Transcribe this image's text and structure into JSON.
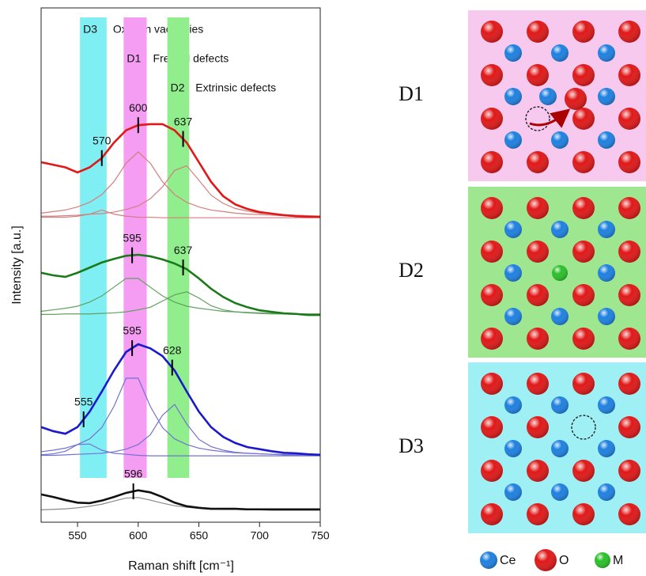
{
  "chart_data": {
    "type": "line",
    "x_label": "Raman shift [cm⁻¹]",
    "y_label": "Intensity [a.u.]",
    "xlim": [
      520,
      750
    ],
    "xticks": [
      550,
      600,
      650,
      700,
      750
    ],
    "ylim": [
      0,
      100
    ],
    "x": [
      520,
      530,
      540,
      550,
      560,
      570,
      580,
      590,
      600,
      610,
      620,
      630,
      640,
      650,
      660,
      670,
      680,
      690,
      700,
      710,
      720,
      730,
      740,
      750
    ],
    "bands": [
      {
        "label": "D3",
        "text": "Oxygen vacancies",
        "range": [
          552,
          574
        ],
        "color": "#80eff4"
      },
      {
        "label": "D1",
        "text": "Frenkel defects",
        "range": [
          588,
          607
        ],
        "color": "#f59cf3"
      },
      {
        "label": "D2",
        "text": "Extrinsic defects",
        "range": [
          624,
          642
        ],
        "color": "#90ef8c"
      }
    ],
    "series": [
      {
        "color": "#e01818",
        "component_color": "#d47e7e",
        "values": [
          70,
          69.5,
          69,
          68,
          69,
          70.8,
          73.8,
          76.2,
          77.2,
          77.4,
          77.4,
          76.2,
          73.8,
          70,
          66.2,
          63.4,
          61.8,
          60.9,
          60.3,
          60,
          59.7,
          59.5,
          59.4,
          59.4
        ],
        "components": [
          {
            "values": [
              59.3,
              59.3,
              59.3,
              59.5,
              59.9,
              60.7,
              59.9,
              59.5,
              59.3,
              59.3,
              59.2,
              59.2,
              59.2,
              59.2,
              59.2,
              59.2,
              59.2,
              59.2,
              59.2,
              59.2,
              59.2,
              59.2,
              59.2,
              59.2
            ]
          },
          {
            "values": [
              60.1,
              60.4,
              60.7,
              61.3,
              62.2,
              63.7,
              66.2,
              69.8,
              72,
              69.8,
              66.2,
              63.7,
              62.2,
              61.3,
              60.7,
              60.4,
              60.1,
              59.9,
              59.8,
              59.7,
              59.6,
              59.6,
              59.5,
              59.5
            ]
          },
          {
            "values": [
              59.5,
              59.5,
              59.6,
              59.7,
              59.9,
              60,
              60.3,
              60.8,
              61.5,
              62.9,
              65.2,
              68.4,
              69.3,
              66.5,
              63.6,
              62,
              61,
              60.5,
              60.1,
              59.9,
              59.8,
              59.7,
              59.6,
              59.5
            ]
          }
        ],
        "peaks": [
          570,
          600,
          637
        ]
      },
      {
        "color": "#1a7a1a",
        "component_color": "#62a062",
        "values": [
          48.5,
          48,
          47.7,
          48.5,
          49.5,
          50.5,
          51.2,
          51.8,
          52,
          51.7,
          51.1,
          50.3,
          49.2,
          47.4,
          45.4,
          43.8,
          42.6,
          41.8,
          41.2,
          40.9,
          40.6,
          40.5,
          40.3,
          40.3
        ],
        "components": [
          {
            "values": [
              41,
              41.3,
              41.6,
              42,
              42.8,
              44,
              45.7,
              47.4,
              47.4,
              45.7,
              44,
              42.8,
              42,
              41.6,
              41.3,
              41,
              40.9,
              40.8,
              40.7,
              40.6,
              40.6,
              40.5,
              40.5,
              40.5
            ]
          },
          {
            "values": [
              40.4,
              40.4,
              40.5,
              40.5,
              40.5,
              40.6,
              40.7,
              40.9,
              41.3,
              41.8,
              43,
              44.2,
              44.8,
              43.6,
              42.1,
              41.3,
              40.9,
              40.7,
              40.6,
              40.5,
              40.5,
              40.4,
              40.4,
              40.4
            ]
          }
        ],
        "peaks": [
          595,
          637
        ]
      },
      {
        "color": "#1a1acc",
        "component_color": "#7272d2",
        "values": [
          18.5,
          17.7,
          17.2,
          18.5,
          21.5,
          25.4,
          29.5,
          33.1,
          34.6,
          33.8,
          32.3,
          29.5,
          25.4,
          21.5,
          18.5,
          16.6,
          15.4,
          14.6,
          14.2,
          13.8,
          13.5,
          13.4,
          13.2,
          13.1
        ],
        "components": [
          {
            "values": [
              13.1,
              13.3,
              13.8,
              15.1,
              15.2,
              14,
              13.4,
              13.2,
              13,
              12.9,
              12.9,
              12.9,
              12.9,
              12.9,
              12.9,
              12.9,
              12.9,
              12.9,
              12.9,
              12.9,
              12.9,
              12.9,
              12.9,
              12.9
            ]
          },
          {
            "values": [
              13.7,
              14,
              14.4,
              15.1,
              16.2,
              18.4,
              22.5,
              28,
              28,
              22.5,
              18.4,
              16.2,
              15.1,
              14.4,
              14,
              13.7,
              13.5,
              13.4,
              13.3,
              13.2,
              13.2,
              13.1,
              13.1,
              13.1
            ]
          },
          {
            "values": [
              13,
              13,
              13.1,
              13.2,
              13.3,
              13.4,
              13.7,
              14.2,
              15.1,
              17,
              20.8,
              22.9,
              19.1,
              16.1,
              14.7,
              14,
              13.6,
              13.4,
              13.3,
              13.2,
              13.1,
              13.1,
              13,
              13
            ]
          }
        ],
        "peaks": [
          555,
          595,
          628
        ]
      },
      {
        "color": "#111111",
        "component_color": "#8a8a8a",
        "values": [
          5.4,
          4.9,
          4.3,
          3.8,
          3.7,
          4.2,
          4.9,
          5.7,
          6.2,
          5.8,
          4.9,
          3.8,
          3.1,
          2.8,
          2.6,
          2.6,
          2.6,
          2.5,
          2.5,
          2.5,
          2.5,
          2.5,
          2.5,
          2.5
        ],
        "components": [
          {
            "values": [
              2.4,
              2.5,
              2.6,
              2.8,
              3.1,
              3.5,
              4.1,
              4.7,
              4.8,
              4.3,
              3.7,
              3.2,
              2.9,
              2.7,
              2.6,
              2.5,
              2.5,
              2.4,
              2.4,
              2.3,
              2.3,
              2.3,
              2.3,
              2.3
            ]
          }
        ],
        "peaks": [
          596
        ]
      }
    ]
  },
  "lattice": {
    "panels": [
      {
        "label": "D1",
        "color": "#f8c9ef"
      },
      {
        "label": "D2",
        "color": "#9fe690"
      },
      {
        "label": "D3",
        "color": "#9ef0f5"
      }
    ],
    "legend": [
      {
        "name": "Ce",
        "color": "#1e80e0"
      },
      {
        "name": "O",
        "color": "#e01818"
      },
      {
        "name": "M",
        "color": "#2ac02a"
      }
    ]
  }
}
